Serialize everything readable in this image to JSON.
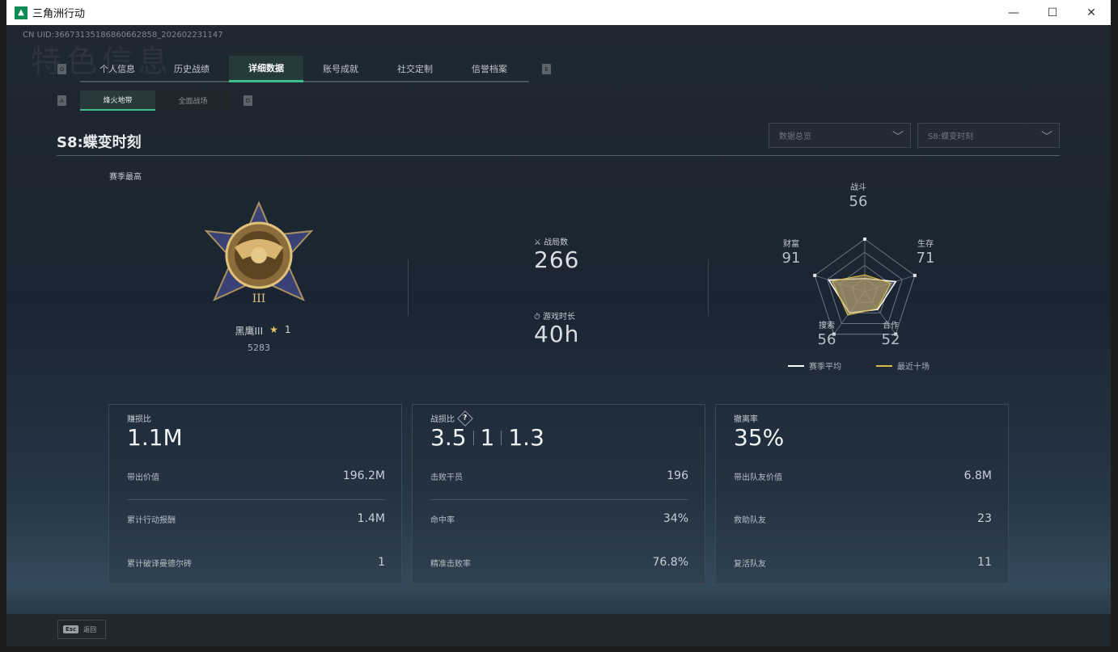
{
  "window": {
    "title": "三角洲行动",
    "minimize": "—",
    "maximize": "☐",
    "close": "✕"
  },
  "uid": "CN UID:36673135186860662858_202602231147",
  "ghost_title": "特色信息",
  "tabs": [
    {
      "label": "个人信息"
    },
    {
      "label": "历史战绩"
    },
    {
      "label": "详细数据",
      "active": true
    },
    {
      "label": "账号成就"
    },
    {
      "label": "社交定制"
    },
    {
      "label": "信誉档案"
    }
  ],
  "tab_keys": {
    "left": "Q",
    "right": "E"
  },
  "subtabs": [
    {
      "label": "烽火地带",
      "active": true
    },
    {
      "label": "全面战场"
    }
  ],
  "subtab_keys": {
    "left": "A",
    "right": "D"
  },
  "season_title": "S8:蝶变时刻",
  "dropdowns": [
    {
      "value": "数据总览"
    },
    {
      "value": "S8:蝶变时刻"
    }
  ],
  "best": {
    "label": "赛季最高",
    "rank": "黑鹰III",
    "stars": "1",
    "score": "5283",
    "medal_numeral": "III"
  },
  "stats": {
    "matches_label": "战局数",
    "matches": "266",
    "time_label": "游戏时长",
    "time": "40h"
  },
  "radar": {
    "axes": [
      {
        "label": "战斗",
        "value": "56"
      },
      {
        "label": "生存",
        "value": "71"
      },
      {
        "label": "合作",
        "value": "52"
      },
      {
        "label": "搜索",
        "value": "56"
      },
      {
        "label": "财富",
        "value": "91"
      }
    ],
    "max": 100,
    "season_avg": [
      25,
      62,
      42,
      50,
      72
    ],
    "recent_ten": [
      32,
      52,
      40,
      55,
      65
    ],
    "legend": {
      "season_avg": "赛季平均",
      "recent_ten": "最近十场"
    },
    "colors": {
      "season_avg": "#ffffff",
      "recent_ten": "#d9b94a"
    }
  },
  "cards": [
    {
      "title": "赚损比",
      "big": [
        "1.1M"
      ],
      "rows": [
        {
          "label": "带出价值",
          "value": "196.2M"
        },
        {
          "label": "累计行动报酬",
          "value": "1.4M"
        },
        {
          "label": "累计破译曼德尔砖",
          "value": "1"
        }
      ]
    },
    {
      "title": "战损比",
      "help": "?",
      "big": [
        "3.5",
        "1",
        "1.3"
      ],
      "rows": [
        {
          "label": "击败干员",
          "value": "196"
        },
        {
          "label": "命中率",
          "value": "34%"
        },
        {
          "label": "精准击败率",
          "value": "76.8%"
        }
      ]
    },
    {
      "title": "撤离率",
      "big": [
        "35%"
      ],
      "rows": [
        {
          "label": "带出队友价值",
          "value": "6.8M"
        },
        {
          "label": "救助队友",
          "value": "23"
        },
        {
          "label": "复活队友",
          "value": "11"
        }
      ]
    }
  ],
  "footer": {
    "esc_key": "Esc",
    "back": "返回"
  },
  "accent": "#3fbf8a"
}
